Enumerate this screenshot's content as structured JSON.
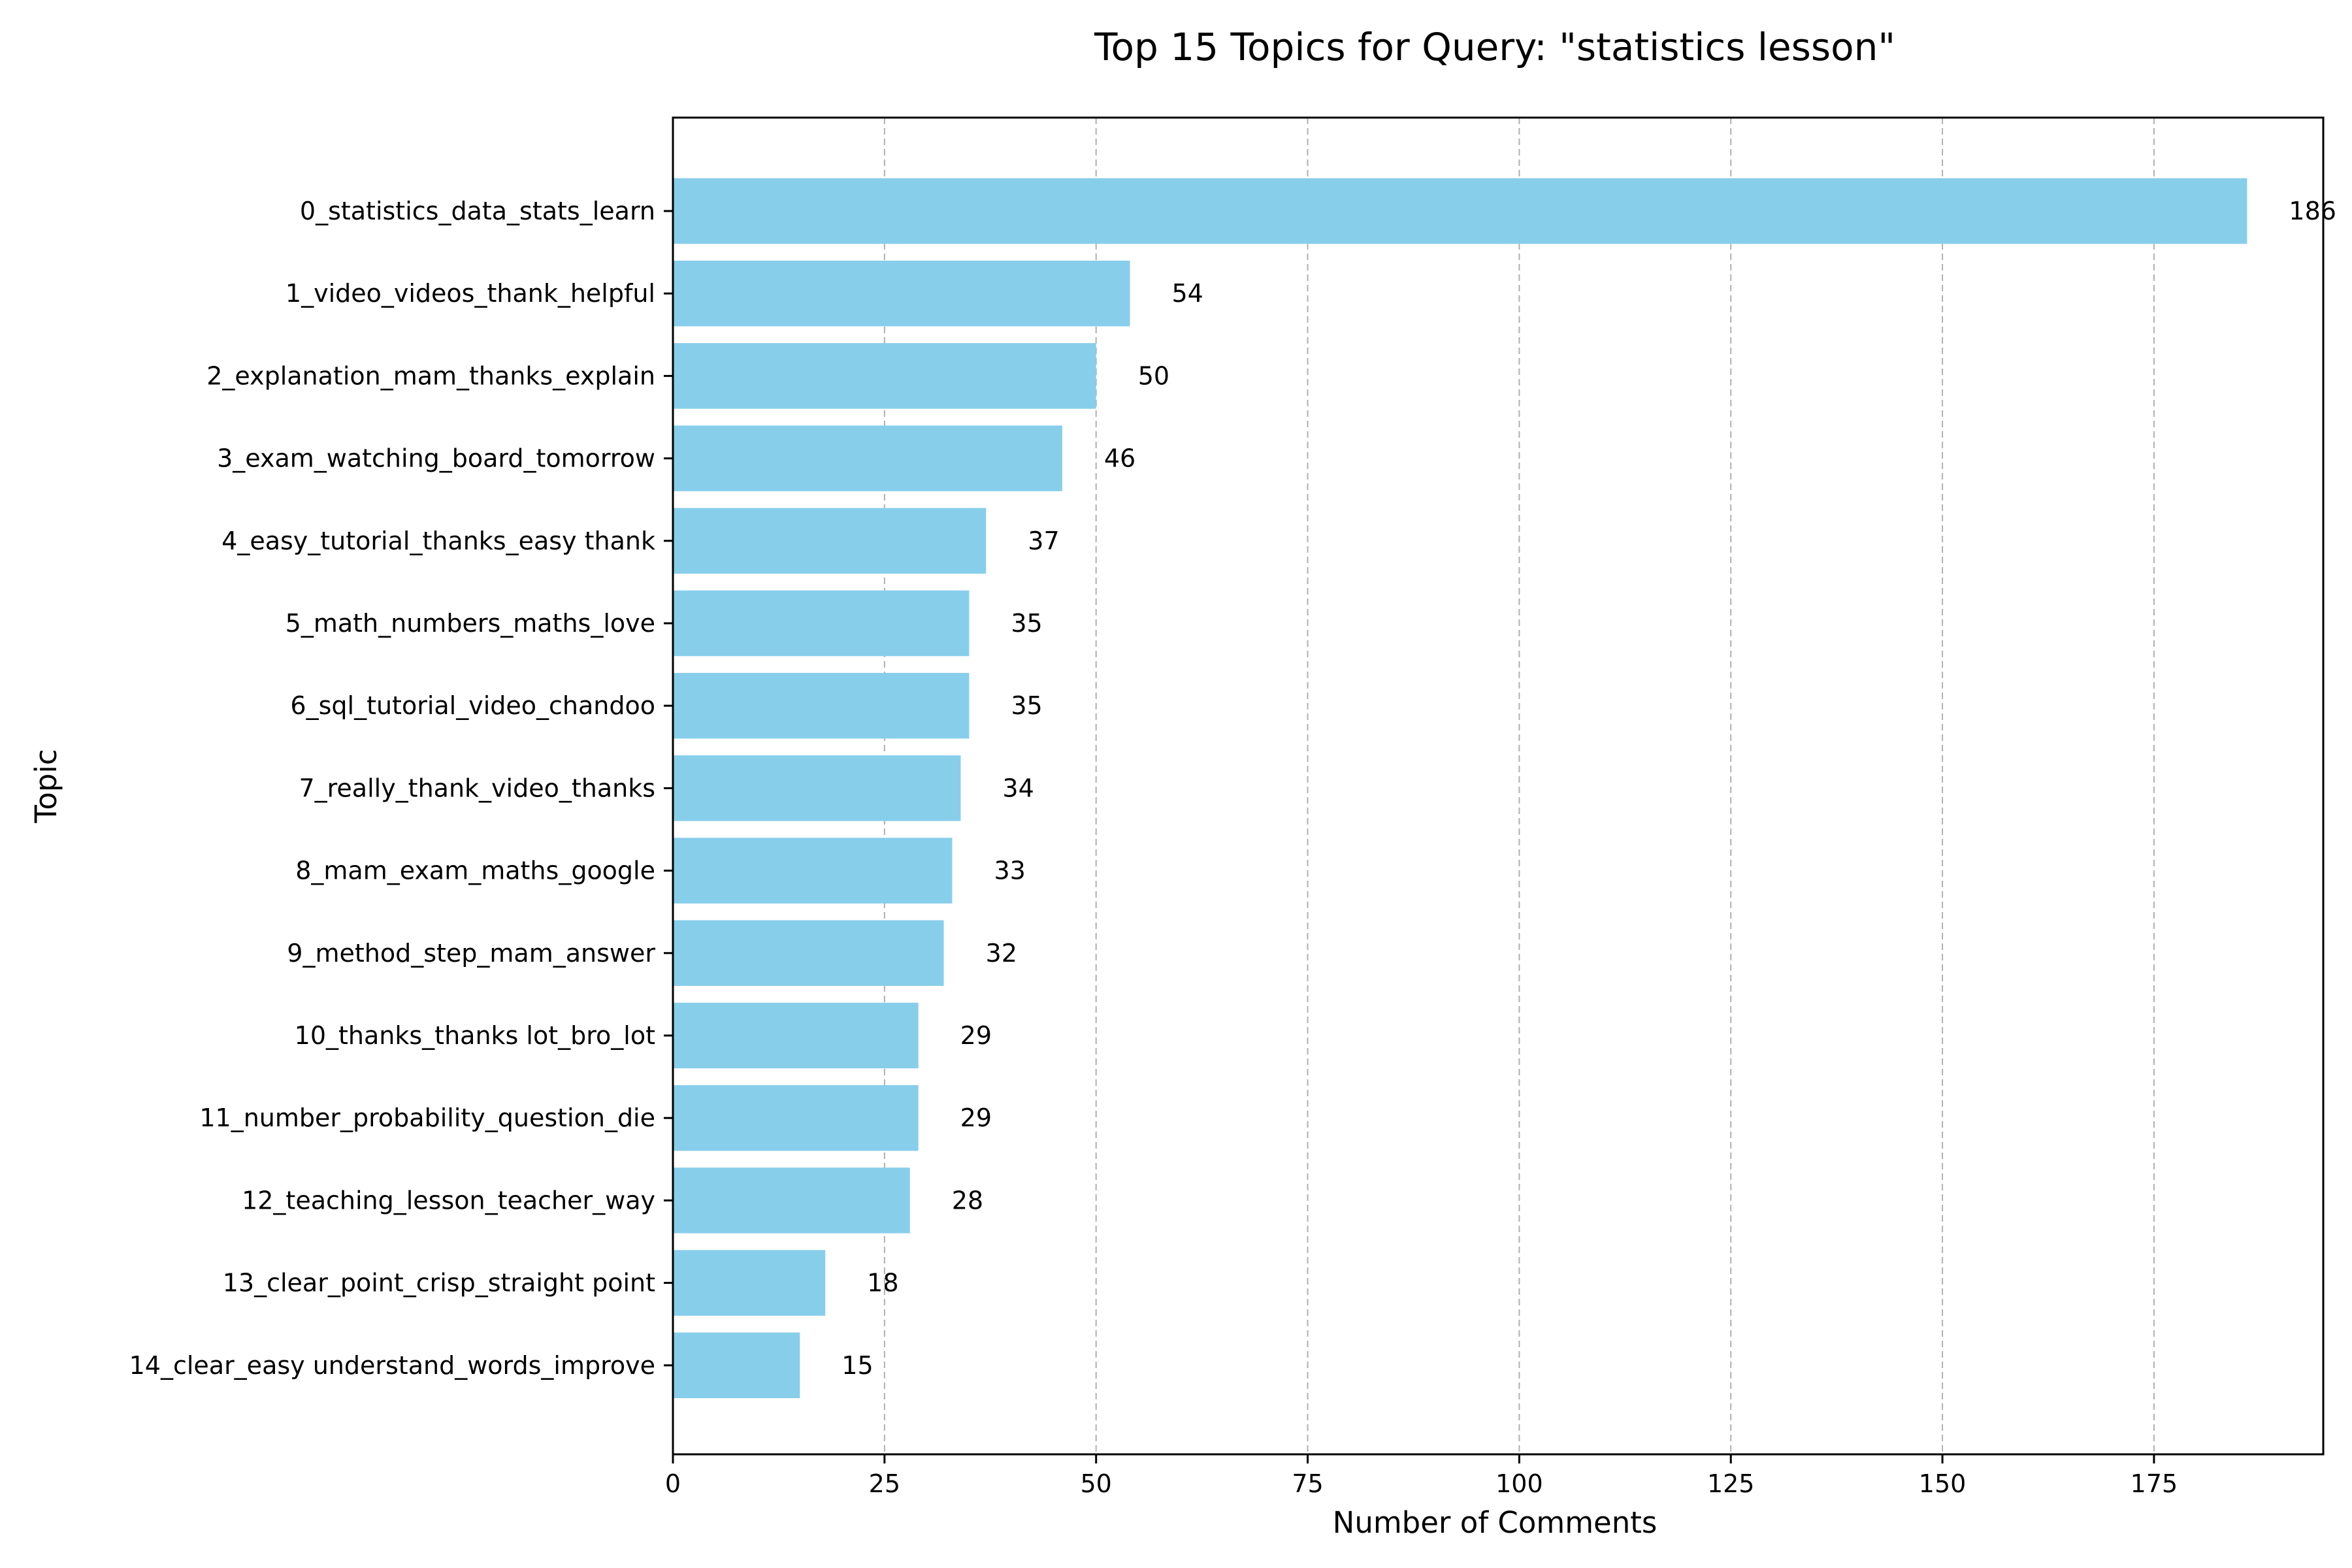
{
  "chart_data": {
    "type": "bar",
    "orientation": "horizontal",
    "title": "Top 15 Topics for Query: \"statistics lesson\"",
    "xlabel": "Number of Comments",
    "ylabel": "Topic",
    "xlim": [
      0,
      195
    ],
    "xticks": [
      0,
      25,
      50,
      75,
      100,
      125,
      150,
      175
    ],
    "grid": "x-dashed",
    "bar_color": "#87CEEB",
    "categories": [
      "0_statistics_data_stats_learn",
      "1_video_videos_thank_helpful",
      "2_explanation_mam_thanks_explain",
      "3_exam_watching_board_tomorrow",
      "4_easy_tutorial_thanks_easy thank",
      "5_math_numbers_maths_love",
      "6_sql_tutorial_video_chandoo",
      "7_really_thank_video_thanks",
      "8_mam_exam_maths_google",
      "9_method_step_mam_answer",
      "10_thanks_thanks lot_bro_lot",
      "11_number_probability_question_die",
      "12_teaching_lesson_teacher_way",
      "13_clear_point_crisp_straight point",
      "14_clear_easy understand_words_improve"
    ],
    "values": [
      186,
      54,
      50,
      46,
      37,
      35,
      35,
      34,
      33,
      32,
      29,
      29,
      28,
      18,
      15
    ]
  }
}
